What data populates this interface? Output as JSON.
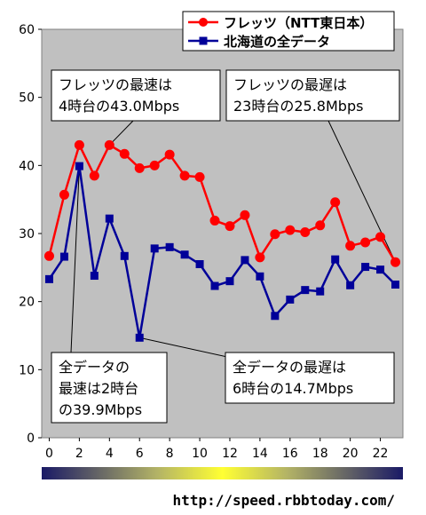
{
  "chart_data": {
    "type": "line",
    "x": [
      0,
      1,
      2,
      3,
      4,
      5,
      6,
      7,
      8,
      9,
      10,
      11,
      12,
      13,
      14,
      15,
      16,
      17,
      18,
      19,
      20,
      21,
      22,
      23
    ],
    "xticks": [
      "0",
      "2",
      "4",
      "6",
      "8",
      "10",
      "12",
      "14",
      "16",
      "18",
      "20",
      "22"
    ],
    "yticks": [
      "0",
      "10",
      "20",
      "30",
      "40",
      "50",
      "60"
    ],
    "ylim": [
      0,
      60
    ],
    "xlim": [
      -0.5,
      23.5
    ],
    "grid": false,
    "legend_position": "top-right",
    "series": [
      {
        "name": "フレッツ（NTT東日本）",
        "color": "#ff0000",
        "marker": "circle",
        "values": [
          26.7,
          35.7,
          43.0,
          38.5,
          43.0,
          41.7,
          39.6,
          40.0,
          41.6,
          38.5,
          38.3,
          31.9,
          31.1,
          32.7,
          26.5,
          29.9,
          30.5,
          30.2,
          31.2,
          34.6,
          28.2,
          28.7,
          29.5,
          25.8
        ]
      },
      {
        "name": "北海道の全データ",
        "color": "#000099",
        "marker": "square",
        "values": [
          23.3,
          26.6,
          39.9,
          23.8,
          32.2,
          26.7,
          14.7,
          27.8,
          28.0,
          26.9,
          25.5,
          22.3,
          23.0,
          26.1,
          23.7,
          17.9,
          20.3,
          21.7,
          21.5,
          26.2,
          22.4,
          25.1,
          24.7,
          22.5
        ]
      }
    ],
    "annotations": [
      {
        "lines": [
          "フレッツの最速は",
          "4時台の43.0Mbps"
        ],
        "point_hour": 4,
        "point_value": 43.0
      },
      {
        "lines": [
          "フレッツの最遅は",
          "23時台の25.8Mbps"
        ],
        "point_hour": 23,
        "point_value": 25.8
      },
      {
        "lines": [
          "全データの",
          "最速は2時台",
          "の39.9Mbps"
        ],
        "point_hour": 2,
        "point_value": 39.9
      },
      {
        "lines": [
          "全データの最遅は",
          "6時台の14.7Mbps"
        ],
        "point_hour": 6,
        "point_value": 14.7
      }
    ],
    "source": "http://speed.rbbtoday.com/"
  },
  "colors": {
    "plot_background": "#c0c0c0",
    "gradient_bar": [
      "#000066",
      "#ffff00",
      "#000066"
    ]
  }
}
